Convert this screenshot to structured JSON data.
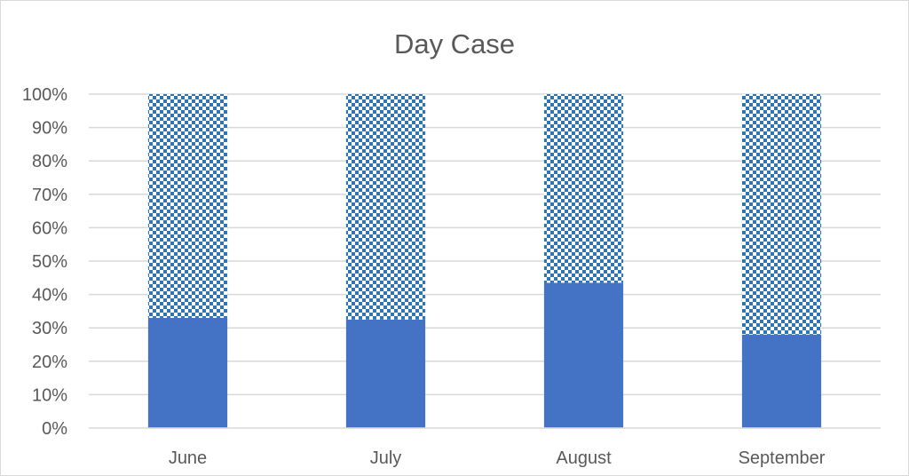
{
  "chart_data": {
    "type": "bar",
    "stacked": true,
    "percent_stacked": true,
    "title": "Day Case",
    "xlabel": "",
    "ylabel": "",
    "categories": [
      "June",
      "July",
      "August",
      "September"
    ],
    "series": [
      {
        "values": [
          33,
          32.5,
          43.5,
          28
        ],
        "color": "#4472c4",
        "fill": "solid"
      },
      {
        "values": [
          67,
          67.5,
          56.5,
          72
        ],
        "color": "#2e75b6",
        "fill": "checkerboard-pattern"
      }
    ],
    "ylim": [
      0,
      100
    ],
    "yticks": [
      "0%",
      "10%",
      "20%",
      "30%",
      "40%",
      "50%",
      "60%",
      "70%",
      "80%",
      "90%",
      "100%"
    ],
    "grid": "horizontal",
    "legend": "none"
  }
}
